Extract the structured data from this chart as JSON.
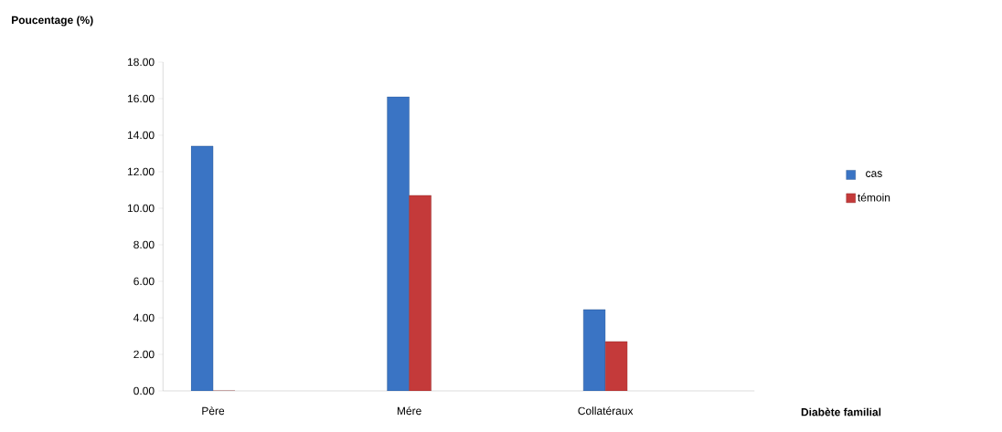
{
  "chart_data": {
    "type": "bar",
    "xlabel": "Diabète familial",
    "ylabel": "Poucentage (%)",
    "categories": [
      "Père",
      "Mére",
      "Collatéraux"
    ],
    "series": [
      {
        "name": "cas",
        "color": "#3a74c4",
        "values": [
          13.4,
          16.1,
          4.45
        ]
      },
      {
        "name": "témoin",
        "color": "#c43a3a",
        "values": [
          0,
          10.7,
          2.7
        ]
      }
    ],
    "ylim": [
      0,
      18
    ],
    "yticks": [
      {
        "value": 0,
        "label": "0.00"
      },
      {
        "value": 2,
        "label": "2.00"
      },
      {
        "value": 4,
        "label": "4.00"
      },
      {
        "value": 6,
        "label": "6.00"
      },
      {
        "value": 8,
        "label": "8.00"
      },
      {
        "value": 10,
        "label": "10.00"
      },
      {
        "value": 12,
        "label": "12.00"
      },
      {
        "value": 14,
        "label": "14.00"
      },
      {
        "value": 16,
        "label": "16.00"
      },
      {
        "value": 18,
        "label": "18.00"
      }
    ],
    "grid": false,
    "legend": "right"
  }
}
